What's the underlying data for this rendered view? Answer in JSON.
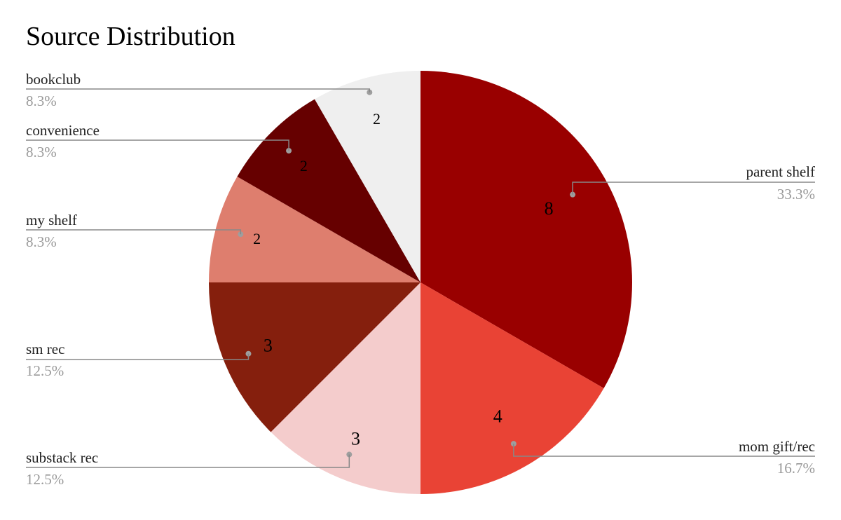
{
  "chart_data": {
    "type": "pie",
    "title": "Source Distribution",
    "slices": [
      {
        "label": "parent shelf",
        "value": 8,
        "percent": "33.3%",
        "color": "#990000"
      },
      {
        "label": "mom gift/rec",
        "value": 4,
        "percent": "16.7%",
        "color": "#E94335"
      },
      {
        "label": "substack rec",
        "value": 3,
        "percent": "12.5%",
        "color": "#F4CCCC"
      },
      {
        "label": "sm rec",
        "value": 3,
        "percent": "12.5%",
        "color": "#851F0D"
      },
      {
        "label": "my shelf",
        "value": 2,
        "percent": "8.3%",
        "color": "#DE7E6E"
      },
      {
        "label": "convenience",
        "value": 2,
        "percent": "8.3%",
        "color": "#660000"
      },
      {
        "label": "bookclub",
        "value": 2,
        "percent": "8.3%",
        "color": "#EFEFEF"
      }
    ],
    "start_angle": "12 o'clock",
    "direction": "clockwise",
    "legend_placement": "callouts"
  }
}
